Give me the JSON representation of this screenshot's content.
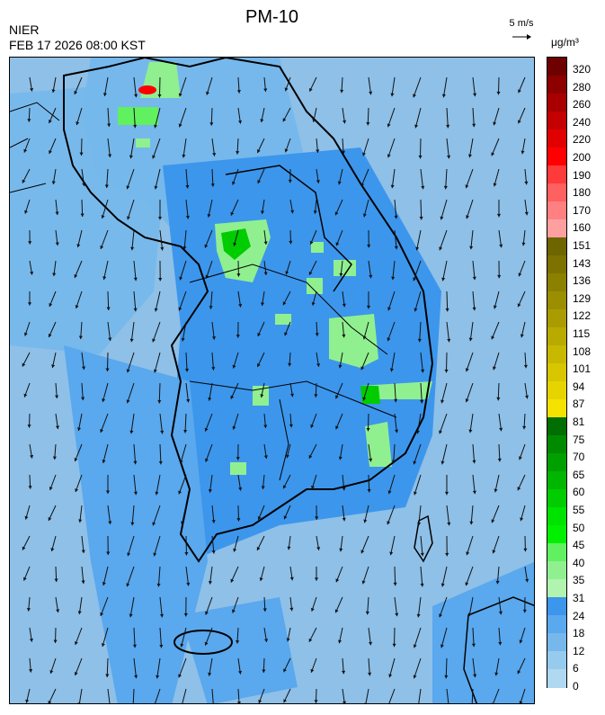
{
  "header": {
    "agency": "NIER",
    "datetime": "FEB 17 2026 08:00 KST",
    "title": "PM-10",
    "wind_scale": "5 m/s",
    "unit": "μg/m³"
  },
  "legend": {
    "ticks": [
      "320",
      "280",
      "260",
      "240",
      "220",
      "200",
      "190",
      "180",
      "170",
      "160",
      "151",
      "143",
      "136",
      "129",
      "122",
      "115",
      "108",
      "101",
      "94",
      "87",
      "81",
      "75",
      "70",
      "65",
      "60",
      "55",
      "50",
      "45",
      "40",
      "35",
      "31",
      "24",
      "18",
      "12",
      "6",
      "0"
    ],
    "colors": [
      "#6e0000",
      "#8c0000",
      "#a80000",
      "#c40000",
      "#e00000",
      "#ff0000",
      "#ff3a3a",
      "#ff6060",
      "#ff8080",
      "#ffa0a0",
      "#6e6400",
      "#7d7200",
      "#8c8000",
      "#9b8e00",
      "#aa9c00",
      "#b9aa00",
      "#c8b800",
      "#d7c600",
      "#e6d400",
      "#f5e200",
      "#006e00",
      "#008a00",
      "#00a000",
      "#00b600",
      "#00cc00",
      "#00e200",
      "#00f000",
      "#60f060",
      "#90f090",
      "#b0f4b0",
      "#3c96ec",
      "#5aa8ee",
      "#76b8ec",
      "#96cbee",
      "#b0d8f0"
    ]
  },
  "map": {
    "region": "Korean Peninsula",
    "field": "PM-10 concentration with wind vectors",
    "wind": {
      "u": -0.6,
      "v": -4.2
    }
  }
}
